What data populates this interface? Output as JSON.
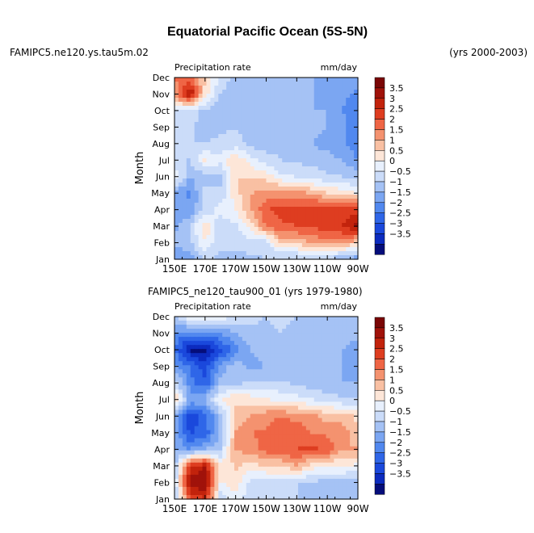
{
  "title": "Equatorial Pacific Ocean (5S-5N)",
  "colors": [
    "#050d7a",
    "#0c2bbf",
    "#1a48dc",
    "#2f66e8",
    "#5188ef",
    "#7ba6f2",
    "#a5c2f5",
    "#cbdcf9",
    "#e8f0fd",
    "#fde6d8",
    "#f9c0a3",
    "#f4926f",
    "#ef6545",
    "#de3d20",
    "#c2230c",
    "#a0120a",
    "#7a0606"
  ],
  "levels": [
    "-3.5",
    "-3",
    "-2.5",
    "-2",
    "-1.5",
    "-1",
    "-0.5",
    "0",
    "0.5",
    "1",
    "1.5",
    "2",
    "2.5",
    "3",
    "3.5"
  ],
  "chart_data": [
    {
      "type": "heatmap",
      "case_label": "FAMIPC5.ne120.ys.tau5m.02",
      "years_label": "(yrs 2000-2003)",
      "field_label": "Precipitation rate",
      "units_label": "mm/day",
      "ylabel": "Month",
      "x_ticks": [
        "150E",
        "170E",
        "170W",
        "150W",
        "130W",
        "110W",
        "90W"
      ],
      "y_ticks": [
        "Jan",
        "Feb",
        "Mar",
        "Apr",
        "May",
        "Jun",
        "Jul",
        "Aug",
        "Sep",
        "Oct",
        "Nov",
        "Dec"
      ],
      "x": [
        150,
        160,
        170,
        180,
        190,
        200,
        210,
        220,
        230,
        240,
        250,
        260,
        270
      ],
      "values": [
        [
          -1.5,
          -1.2,
          -0.5,
          -0.6,
          -0.6,
          -0.6,
          -0.5,
          -0.7,
          -0.7,
          -0.6,
          -0.4,
          -1.2,
          -1.4
        ],
        [
          -0.8,
          -0.7,
          0.5,
          -0.4,
          -0.4,
          -0.3,
          -0.2,
          1.2,
          1.2,
          1.5,
          1.8,
          1.8,
          1.0
        ],
        [
          -1.2,
          -0.5,
          1.0,
          -0.4,
          -0.1,
          0.8,
          2.0,
          2.4,
          2.5,
          2.6,
          2.8,
          3.0,
          3.7
        ],
        [
          -1.4,
          -1.4,
          -0.4,
          0.2,
          0.5,
          1.5,
          2.5,
          2.7,
          2.8,
          2.9,
          2.9,
          2.7,
          2.8
        ],
        [
          -1.3,
          -1.6,
          -0.3,
          -0.4,
          0.8,
          1.5,
          1.7,
          1.8,
          1.7,
          1.4,
          1.0,
          0.8,
          0.5
        ],
        [
          0.6,
          -1.0,
          -0.7,
          -0.6,
          1.0,
          1.0,
          0.8,
          0.1,
          0.0,
          -0.2,
          -0.4,
          -0.5,
          -0.8
        ],
        [
          -0.5,
          -0.5,
          0.6,
          0.2,
          1.0,
          0.2,
          -0.3,
          -0.5,
          -0.6,
          -0.7,
          -0.8,
          -1.0,
          -1.5
        ],
        [
          -0.3,
          -0.5,
          -0.5,
          -0.4,
          -0.3,
          -0.7,
          -0.8,
          -0.6,
          -0.8,
          -1.0,
          -1.2,
          -1.4,
          -1.9
        ],
        [
          -0.5,
          -0.4,
          -0.7,
          -0.6,
          -0.5,
          -0.8,
          -0.7,
          -0.7,
          -0.8,
          -0.9,
          -1.0,
          -1.4,
          -1.7
        ],
        [
          0.0,
          -0.3,
          -0.6,
          -0.8,
          -0.7,
          -0.7,
          -0.8,
          -0.8,
          -0.9,
          -1.0,
          -1.0,
          -1.5,
          -1.8
        ],
        [
          1.6,
          3.7,
          0.8,
          -0.5,
          -0.9,
          -0.9,
          -0.8,
          -0.8,
          -0.9,
          -1.0,
          -1.1,
          -1.4,
          -1.6
        ],
        [
          2.0,
          2.2,
          1.0,
          -0.2,
          -0.6,
          -0.8,
          -0.9,
          -0.8,
          -0.9,
          -1.0,
          -1.1,
          -1.2,
          -1.2
        ]
      ]
    },
    {
      "type": "heatmap",
      "case_label": "FAMIPC5_ne120_tau900_01 (yrs 1979-1980)",
      "field_label": "Precipitation rate",
      "units_label": "mm/day",
      "ylabel": "Month",
      "x_ticks": [
        "150E",
        "170E",
        "170W",
        "150W",
        "130W",
        "110W",
        "90W"
      ],
      "y_ticks": [
        "Jan",
        "Feb",
        "Mar",
        "Apr",
        "May",
        "Jun",
        "Jul",
        "Aug",
        "Sep",
        "Oct",
        "Nov",
        "Dec"
      ],
      "x": [
        150,
        160,
        170,
        180,
        190,
        200,
        210,
        220,
        230,
        240,
        250,
        260,
        270
      ],
      "values": [
        [
          -0.8,
          2.5,
          3.0,
          -0.3,
          0.3,
          -0.4,
          -0.3,
          -0.4,
          -0.5,
          -0.5,
          -0.6,
          -0.7,
          -0.6
        ],
        [
          -0.4,
          3.8,
          4.0,
          0.5,
          0.8,
          -0.2,
          -0.2,
          -0.2,
          -0.5,
          -0.6,
          -0.7,
          -0.8,
          -0.7
        ],
        [
          -0.8,
          3.0,
          3.5,
          0.6,
          1.1,
          0.8,
          1.0,
          1.0,
          1.5,
          0.8,
          0.5,
          0.6,
          0.3
        ],
        [
          -1.0,
          -1.5,
          -1.0,
          -0.5,
          1.5,
          1.8,
          2.2,
          2.5,
          2.5,
          2.6,
          2.4,
          1.5,
          1.6
        ],
        [
          -1.0,
          -2.6,
          -2.3,
          -1.0,
          1.5,
          2.0,
          2.1,
          2.5,
          2.4,
          2.0,
          1.9,
          1.8,
          1.0
        ],
        [
          -0.8,
          -2.8,
          -2.2,
          -0.8,
          1.0,
          1.5,
          1.8,
          2.0,
          1.8,
          1.6,
          1.3,
          1.2,
          0.9
        ],
        [
          1.2,
          -1.2,
          -1.0,
          0.5,
          1.0,
          0.8,
          0.6,
          0.3,
          0.2,
          0.0,
          -0.2,
          -0.4,
          -0.5
        ],
        [
          -0.2,
          -1.8,
          -2.4,
          -0.8,
          -0.6,
          -0.5,
          -0.5,
          -0.4,
          -0.6,
          -0.8,
          -0.9,
          -1.0,
          -1.0
        ],
        [
          -1.4,
          -2.0,
          -2.8,
          -1.4,
          -0.6,
          -1.2,
          -1.0,
          -0.9,
          -1.0,
          -0.9,
          -1.0,
          -1.0,
          -1.2
        ],
        [
          -2.0,
          -3.6,
          -3.8,
          -2.6,
          -1.8,
          -1.0,
          -0.8,
          -0.9,
          -1.0,
          -0.9,
          -0.9,
          -1.0,
          -1.2
        ],
        [
          -1.6,
          -1.8,
          -1.6,
          -1.5,
          -1.0,
          -0.6,
          -0.6,
          -0.5,
          -0.6,
          -0.6,
          -0.7,
          -0.8,
          -0.9
        ],
        [
          -0.6,
          0.4,
          0.8,
          0.5,
          -0.2,
          -0.4,
          -0.5,
          -0.4,
          -0.5,
          -0.5,
          -0.5,
          -0.6,
          -0.7
        ]
      ]
    }
  ]
}
